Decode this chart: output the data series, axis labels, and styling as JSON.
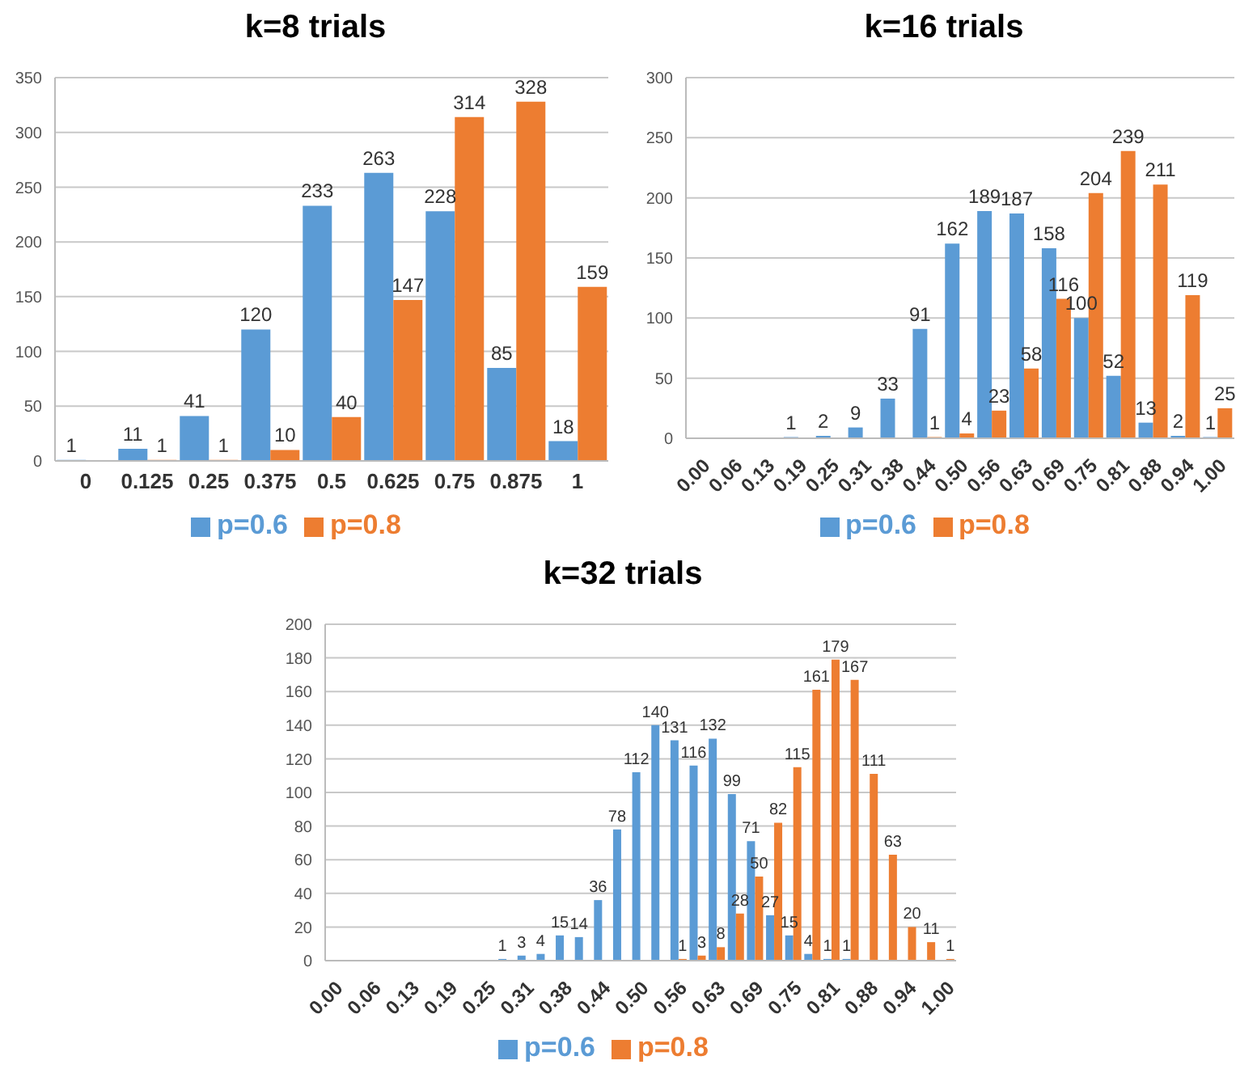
{
  "chart_data": [
    {
      "type": "bar",
      "title": "k=8 trials",
      "categories": [
        "0",
        "0.125",
        "0.25",
        "0.375",
        "0.5",
        "0.625",
        "0.75",
        "0.875",
        "1"
      ],
      "series": [
        {
          "name": "p=0.6",
          "color": "#5b9bd5",
          "values": [
            1,
            11,
            41,
            120,
            233,
            263,
            228,
            85,
            18
          ]
        },
        {
          "name": "p=0.8",
          "color": "#ed7d31",
          "values": [
            null,
            1,
            1,
            10,
            40,
            147,
            314,
            328,
            159
          ]
        }
      ],
      "ylim": [
        0,
        350
      ],
      "yticks": [
        0,
        50,
        100,
        150,
        200,
        250,
        300,
        350
      ],
      "grid": "y",
      "legend": "bottom",
      "data_labels": true
    },
    {
      "type": "bar",
      "title": "k=16 trials",
      "categories": [
        "0.00",
        "0.06",
        "0.13",
        "0.19",
        "0.25",
        "0.31",
        "0.38",
        "0.44",
        "0.50",
        "0.56",
        "0.63",
        "0.69",
        "0.75",
        "0.81",
        "0.88",
        "0.94",
        "1.00"
      ],
      "series": [
        {
          "name": "p=0.6",
          "color": "#5b9bd5",
          "values": [
            null,
            null,
            null,
            1,
            2,
            9,
            33,
            91,
            162,
            189,
            187,
            158,
            100,
            52,
            13,
            2,
            1
          ]
        },
        {
          "name": "p=0.8",
          "color": "#ed7d31",
          "values": [
            null,
            null,
            null,
            null,
            null,
            null,
            null,
            1,
            4,
            23,
            58,
            116,
            204,
            239,
            211,
            119,
            25
          ]
        }
      ],
      "ylim": [
        0,
        300
      ],
      "yticks": [
        0,
        50,
        100,
        150,
        200,
        250,
        300
      ],
      "grid": "y",
      "legend": "bottom",
      "data_labels": true
    },
    {
      "type": "bar",
      "title": "k=32 trials",
      "categories": [
        "0.00",
        null,
        "0.06",
        null,
        "0.13",
        null,
        "0.19",
        null,
        "0.25",
        null,
        "0.31",
        null,
        "0.38",
        null,
        "0.44",
        null,
        "0.50",
        null,
        "0.56",
        null,
        "0.63",
        null,
        "0.69",
        null,
        "0.75",
        null,
        "0.81",
        null,
        "0.88",
        null,
        "0.94",
        null,
        "1.00"
      ],
      "series": [
        {
          "name": "p=0.6",
          "color": "#5b9bd5",
          "values": [
            null,
            null,
            null,
            null,
            null,
            null,
            null,
            null,
            null,
            1,
            3,
            4,
            15,
            14,
            36,
            78,
            112,
            140,
            131,
            116,
            132,
            99,
            71,
            27,
            15,
            4,
            1,
            1,
            null,
            null,
            null,
            null,
            null
          ]
        },
        {
          "name": "p=0.8",
          "color": "#ed7d31",
          "values": [
            null,
            null,
            null,
            null,
            null,
            null,
            null,
            null,
            null,
            null,
            null,
            null,
            null,
            null,
            null,
            null,
            null,
            null,
            1,
            3,
            8,
            28,
            50,
            82,
            115,
            161,
            179,
            167,
            111,
            63,
            20,
            11,
            1
          ]
        }
      ],
      "ylim": [
        0,
        200
      ],
      "yticks": [
        0,
        20,
        40,
        60,
        80,
        100,
        120,
        140,
        160,
        180,
        200
      ],
      "grid": "y",
      "legend": "bottom",
      "data_labels": true
    }
  ]
}
